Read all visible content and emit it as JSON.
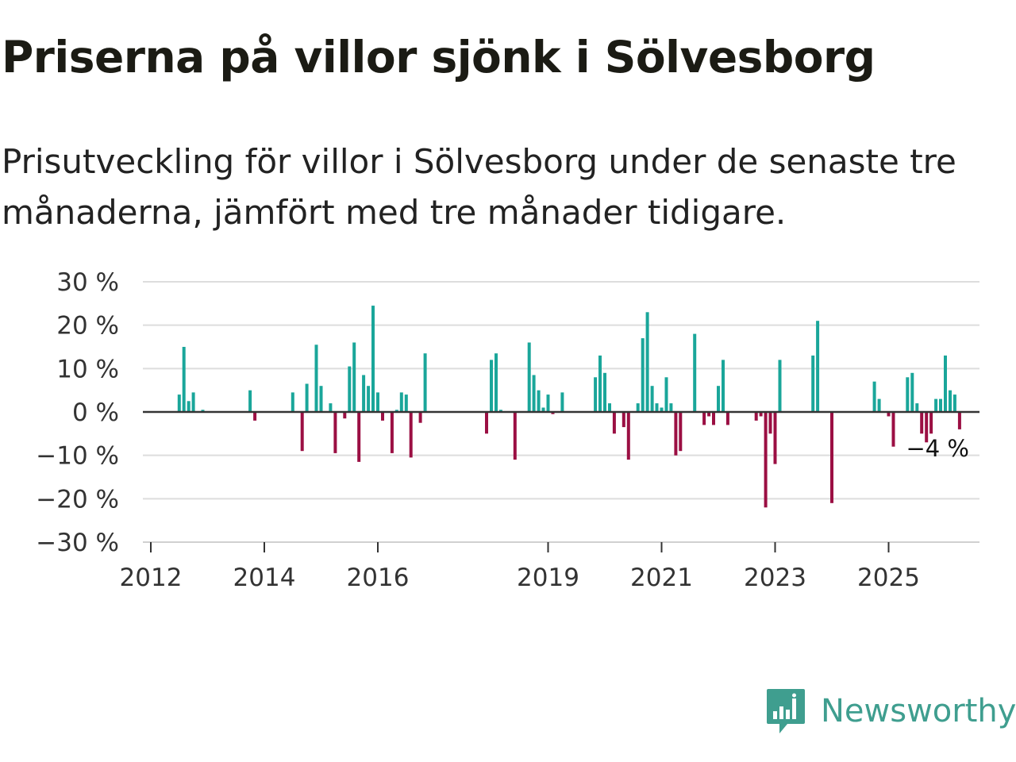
{
  "title": "Priserna på villor sjönk i Sölvesborg",
  "subtitle": "Prisutveckling för villor i Sölvesborg under de senaste tre månaderna, jämfört med tre månader tidigare.",
  "brand": {
    "name": "Newsworthy",
    "icon": "newsworthy-logo-icon"
  },
  "colors": {
    "positive": "#1aa69a",
    "negative": "#9b0f43",
    "grid": "#dddddd",
    "axis": "#333333",
    "brand": "#3f9e8f"
  },
  "chart_data": {
    "type": "bar",
    "title": "Priserna på villor sjönk i Sölvesborg",
    "xlabel": "",
    "ylabel": "",
    "ylim": [
      -30,
      30
    ],
    "y_ticks": [
      30,
      20,
      10,
      0,
      -10,
      -20,
      -30
    ],
    "y_tick_labels": [
      "30 %",
      "20 %",
      "10 %",
      "0 %",
      "−10 %",
      "−20 %",
      "−30 %"
    ],
    "x_ticks": [
      {
        "year": 2012,
        "label": "2012"
      },
      {
        "year": 2014,
        "label": "2014"
      },
      {
        "year": 2016,
        "label": "2016"
      },
      {
        "year": 2019,
        "label": "2019"
      },
      {
        "year": 2021,
        "label": "2021"
      },
      {
        "year": 2023,
        "label": "2023"
      },
      {
        "year": 2025,
        "label": "2025"
      }
    ],
    "last_label": "−4 %",
    "series": [
      {
        "name": "Prisutveckling",
        "points": [
          {
            "date": "2012-07",
            "value": 4
          },
          {
            "date": "2012-08",
            "value": 15
          },
          {
            "date": "2012-09",
            "value": 2.5
          },
          {
            "date": "2012-10",
            "value": 4.5
          },
          {
            "date": "2012-12",
            "value": 0.5
          },
          {
            "date": "2013-10",
            "value": 5
          },
          {
            "date": "2013-11",
            "value": -2
          },
          {
            "date": "2014-07",
            "value": 4.5
          },
          {
            "date": "2014-09",
            "value": -9
          },
          {
            "date": "2014-10",
            "value": 6.5
          },
          {
            "date": "2014-12",
            "value": 15.5
          },
          {
            "date": "2015-01",
            "value": 6
          },
          {
            "date": "2015-03",
            "value": 2
          },
          {
            "date": "2015-04",
            "value": -9.5
          },
          {
            "date": "2015-06",
            "value": -1.5
          },
          {
            "date": "2015-07",
            "value": 10.5
          },
          {
            "date": "2015-08",
            "value": 16
          },
          {
            "date": "2015-09",
            "value": -11.5
          },
          {
            "date": "2015-10",
            "value": 8.5
          },
          {
            "date": "2015-11",
            "value": 6
          },
          {
            "date": "2015-12",
            "value": 24.5
          },
          {
            "date": "2016-01",
            "value": 4.5
          },
          {
            "date": "2016-02",
            "value": -2
          },
          {
            "date": "2016-04",
            "value": -9.5
          },
          {
            "date": "2016-05",
            "value": 0.5
          },
          {
            "date": "2016-06",
            "value": 4.5
          },
          {
            "date": "2016-07",
            "value": 4
          },
          {
            "date": "2016-08",
            "value": -10.5
          },
          {
            "date": "2016-10",
            "value": -2.5
          },
          {
            "date": "2016-11",
            "value": 13.5
          },
          {
            "date": "2017-12",
            "value": -5
          },
          {
            "date": "2018-01",
            "value": 12
          },
          {
            "date": "2018-02",
            "value": 13.5
          },
          {
            "date": "2018-03",
            "value": 0.5
          },
          {
            "date": "2018-06",
            "value": -11
          },
          {
            "date": "2018-09",
            "value": 16
          },
          {
            "date": "2018-10",
            "value": 8.5
          },
          {
            "date": "2018-11",
            "value": 5
          },
          {
            "date": "2018-12",
            "value": 1
          },
          {
            "date": "2019-01",
            "value": 4
          },
          {
            "date": "2019-02",
            "value": -0.5
          },
          {
            "date": "2019-04",
            "value": 4.5
          },
          {
            "date": "2019-11",
            "value": 8
          },
          {
            "date": "2019-12",
            "value": 13
          },
          {
            "date": "2020-01",
            "value": 9
          },
          {
            "date": "2020-02",
            "value": 2
          },
          {
            "date": "2020-03",
            "value": -5
          },
          {
            "date": "2020-05",
            "value": -3.5
          },
          {
            "date": "2020-06",
            "value": -11
          },
          {
            "date": "2020-08",
            "value": 2
          },
          {
            "date": "2020-09",
            "value": 17
          },
          {
            "date": "2020-10",
            "value": 23
          },
          {
            "date": "2020-11",
            "value": 6
          },
          {
            "date": "2020-12",
            "value": 2
          },
          {
            "date": "2021-01",
            "value": 1
          },
          {
            "date": "2021-02",
            "value": 8
          },
          {
            "date": "2021-03",
            "value": 2
          },
          {
            "date": "2021-04",
            "value": -10
          },
          {
            "date": "2021-05",
            "value": -9
          },
          {
            "date": "2021-08",
            "value": 18
          },
          {
            "date": "2021-10",
            "value": -3
          },
          {
            "date": "2021-11",
            "value": -1
          },
          {
            "date": "2021-12",
            "value": -3
          },
          {
            "date": "2022-01",
            "value": 6
          },
          {
            "date": "2022-02",
            "value": 12
          },
          {
            "date": "2022-03",
            "value": -3
          },
          {
            "date": "2022-09",
            "value": -2
          },
          {
            "date": "2022-10",
            "value": -1
          },
          {
            "date": "2022-11",
            "value": -22
          },
          {
            "date": "2022-12",
            "value": -5
          },
          {
            "date": "2023-01",
            "value": -12
          },
          {
            "date": "2023-02",
            "value": 12
          },
          {
            "date": "2023-09",
            "value": 13
          },
          {
            "date": "2023-10",
            "value": 21
          },
          {
            "date": "2024-01",
            "value": -21
          },
          {
            "date": "2024-10",
            "value": 7
          },
          {
            "date": "2024-11",
            "value": 3
          },
          {
            "date": "2025-01",
            "value": -1
          },
          {
            "date": "2025-02",
            "value": -8
          },
          {
            "date": "2025-05",
            "value": 8
          },
          {
            "date": "2025-06",
            "value": 9
          },
          {
            "date": "2025-07",
            "value": 2
          },
          {
            "date": "2025-08",
            "value": -5
          },
          {
            "date": "2025-09",
            "value": -7
          },
          {
            "date": "2025-10",
            "value": -5
          },
          {
            "date": "2025-11",
            "value": 3
          },
          {
            "date": "2025-12",
            "value": 3
          },
          {
            "date": "2026-01",
            "value": 13
          },
          {
            "date": "2026-02",
            "value": 5
          },
          {
            "date": "2026-03",
            "value": 4
          },
          {
            "date": "2026-04",
            "value": -4
          }
        ]
      }
    ]
  }
}
